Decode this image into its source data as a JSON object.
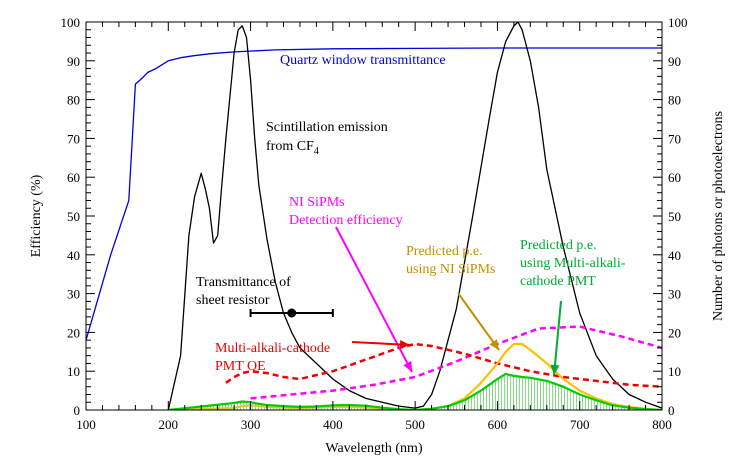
{
  "chart_data": {
    "type": "line",
    "xlabel": "Wavelength (nm)",
    "ylabel": "Efficiency (%)",
    "y2label": "Number of photons or photoelectrons",
    "xlim": [
      100,
      800
    ],
    "ylim": [
      0,
      100
    ],
    "y2lim": [
      0,
      100
    ],
    "xticks": [
      "100",
      "200",
      "300",
      "400",
      "500",
      "600",
      "700",
      "800"
    ],
    "yticks": [
      "0",
      "10",
      "20",
      "30",
      "40",
      "50",
      "60",
      "70",
      "80",
      "90",
      "100"
    ],
    "y2ticks": [
      "0",
      "10",
      "20",
      "30",
      "40",
      "50",
      "60",
      "70",
      "80",
      "90",
      "100"
    ],
    "series": [
      {
        "name": "Quartz window transmittance",
        "color": "#0000dd",
        "style": "solid",
        "x": [
          100,
          130,
          152,
          160,
          168,
          175,
          185,
          200,
          215,
          230,
          250,
          280,
          330,
          400,
          500,
          600,
          700,
          800
        ],
        "y": [
          18,
          40,
          54,
          84,
          85.5,
          87,
          88,
          90,
          90.8,
          91.3,
          91.8,
          92.3,
          92.8,
          93.1,
          93.2,
          93.3,
          93.3,
          93.3
        ]
      },
      {
        "name": "Scintillation emission from CF4",
        "color": "#000000",
        "style": "solid",
        "x": [
          200,
          215,
          225,
          232,
          240,
          245,
          250,
          255,
          260,
          265,
          270,
          280,
          285,
          290,
          295,
          300,
          305,
          310,
          320,
          330,
          340,
          350,
          360,
          380,
          400,
          420,
          440,
          460,
          480,
          500,
          510,
          520,
          530,
          550,
          570,
          590,
          600,
          610,
          620,
          625,
          630,
          640,
          650,
          660,
          680,
          700,
          720,
          740,
          760,
          780,
          800
        ],
        "y": [
          0,
          14,
          45,
          55,
          61,
          57,
          52,
          43,
          45,
          58,
          70,
          92,
          98,
          99,
          96,
          85,
          70,
          58,
          44,
          33,
          25,
          20,
          16,
          12,
          8,
          5,
          3,
          2,
          1,
          0.5,
          1,
          4,
          10,
          26,
          50,
          75,
          87,
          95,
          99,
          100,
          98,
          90,
          78,
          62,
          42,
          25,
          14,
          8,
          4,
          2,
          0.5
        ]
      },
      {
        "name": "NI SiPMs Detection efficiency",
        "color": "#ff00ff",
        "style": "dashed",
        "x": [
          300,
          350,
          400,
          450,
          500,
          550,
          600,
          650,
          700,
          750,
          800
        ],
        "y": [
          3,
          4,
          5,
          6.5,
          8.5,
          12.5,
          17,
          21,
          21.5,
          19,
          16
        ]
      },
      {
        "name": "Multi-alkali-cathode PMT QE",
        "color": "#ee0000",
        "style": "dashed",
        "x": [
          270,
          280,
          290,
          300,
          320,
          340,
          360,
          400,
          440,
          480,
          500,
          520,
          560,
          600,
          640,
          680,
          720,
          760,
          800
        ],
        "y": [
          7,
          8.5,
          9.5,
          10,
          9.5,
          8.5,
          8,
          10,
          13,
          16,
          17,
          16.5,
          14.5,
          12,
          10,
          8.5,
          7.5,
          6.5,
          6
        ]
      },
      {
        "name": "Predicted p.e. using NI SiPMs",
        "color": "#ffc000",
        "style": "solid",
        "x": [
          200,
          280,
          290,
          300,
          310,
          320,
          340,
          360,
          380,
          400,
          420,
          440,
          460,
          480,
          500,
          520,
          540,
          560,
          580,
          600,
          610,
          620,
          630,
          640,
          660,
          680,
          700,
          720,
          740,
          760,
          780,
          800
        ],
        "y": [
          0,
          0.5,
          1,
          1.2,
          1,
          0.8,
          0.6,
          0.5,
          0.6,
          0.8,
          0.8,
          0.6,
          0.3,
          0.1,
          0,
          0.3,
          1,
          3,
          7,
          12,
          15,
          17,
          17,
          15.5,
          12,
          8,
          5,
          3,
          1.5,
          0.8,
          0.3,
          0
        ]
      },
      {
        "name": "Predicted p.e. using Multi-alkali-cathode PMT",
        "color": "#00cc00",
        "style": "solid",
        "fill": true,
        "x": [
          200,
          280,
          290,
          300,
          310,
          320,
          340,
          360,
          380,
          400,
          420,
          440,
          460,
          480,
          500,
          520,
          540,
          560,
          580,
          600,
          610,
          620,
          630,
          640,
          660,
          680,
          700,
          720,
          740,
          760,
          780,
          800
        ],
        "y": [
          0,
          1.8,
          2.2,
          2,
          1.6,
          1.3,
          1,
          0.8,
          0.9,
          1.2,
          1.3,
          1.1,
          0.6,
          0.2,
          0,
          0.3,
          1,
          2.5,
          5,
          8,
          9.3,
          8.8,
          8.5,
          8.3,
          7.5,
          6,
          4,
          2.5,
          1.2,
          0.6,
          0.2,
          0
        ]
      },
      {
        "name": "Transmittance of sheet resistor",
        "color": "#000000",
        "style": "point",
        "x": [
          350
        ],
        "y": [
          25
        ],
        "xerr": [
          50
        ]
      }
    ],
    "annotations": [
      {
        "key": "quartz",
        "lines": [
          "Quartz window transmittance"
        ],
        "color": "#0000dd"
      },
      {
        "key": "scint",
        "lines": [
          "Scintillation emission",
          "from CF",
          "4"
        ],
        "color": "#000000"
      },
      {
        "key": "sipm_de",
        "lines": [
          "NI SiPMs",
          "Detection efficiency"
        ],
        "color": "#ff00ff"
      },
      {
        "key": "resistor",
        "lines": [
          "Transmittance of",
          "sheet resistor"
        ],
        "color": "#000000"
      },
      {
        "key": "pmt_qe",
        "lines": [
          "Multi-alkali-cathode",
          "PMT QE"
        ],
        "color": "#ee0000"
      },
      {
        "key": "pe_sipm",
        "lines": [
          "Predicted p.e.",
          "using NI SiPMs"
        ],
        "color": "#c09000"
      },
      {
        "key": "pe_pmt",
        "lines": [
          "Predicted p.e.",
          "using Multi-alkali-",
          "cathode PMT"
        ],
        "color": "#00aa33"
      }
    ]
  }
}
